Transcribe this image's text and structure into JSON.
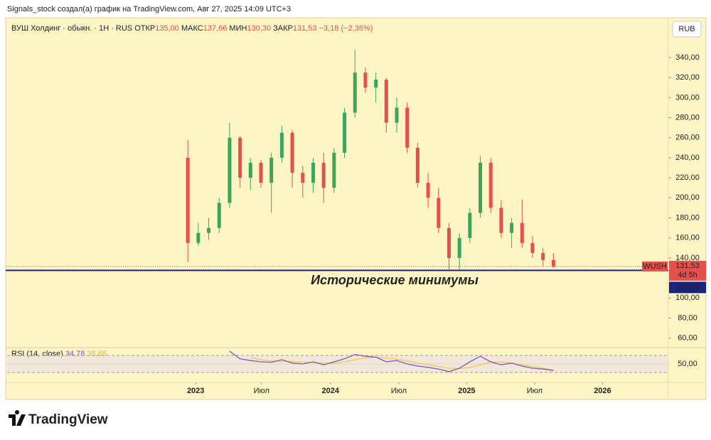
{
  "header": {
    "caption": "Signals_stock создал(а) график на TradingView.com, Авг 27, 2025 14:09 UTC+3",
    "brand": "TradingView",
    "currency": "RUB"
  },
  "chart_data": [
    {
      "type": "candlestick",
      "legend": {
        "symbol": "ВУШ Холдинг · обыкн. · 1Н · RUS",
        "open_label": "ОТКР",
        "open": "135,00",
        "high_label": "МАКС",
        "high": "137,66",
        "low_label": "МИН",
        "low": "130,30",
        "close_label": "ЗАКР",
        "close": "131,53",
        "change": "−3,18 (−2,36%)"
      },
      "x": [
        0,
        1,
        2,
        3,
        4,
        5,
        6,
        7,
        8,
        9,
        10,
        11,
        12,
        13,
        14,
        15,
        16,
        17,
        18,
        19,
        20,
        21,
        22,
        23,
        24,
        25,
        26,
        27,
        28,
        29,
        30,
        31,
        32,
        33,
        34,
        35
      ],
      "open": [
        240,
        155,
        165,
        170,
        195,
        260,
        220,
        235,
        215,
        240,
        265,
        225,
        215,
        235,
        210,
        245,
        285,
        325,
        310,
        318,
        275,
        290,
        250,
        215,
        200,
        170,
        140,
        160,
        185,
        235,
        190,
        165,
        175,
        155,
        145,
        138
      ],
      "high": [
        258,
        175,
        180,
        200,
        275,
        262,
        240,
        238,
        245,
        272,
        268,
        232,
        240,
        245,
        250,
        290,
        348,
        330,
        325,
        320,
        300,
        295,
        255,
        225,
        210,
        175,
        165,
        190,
        242,
        240,
        198,
        180,
        198,
        162,
        150,
        145
      ],
      "low": [
        136,
        152,
        158,
        165,
        190,
        210,
        208,
        210,
        185,
        235,
        210,
        200,
        205,
        195,
        205,
        240,
        280,
        305,
        295,
        265,
        265,
        245,
        210,
        190,
        165,
        128,
        128,
        155,
        180,
        185,
        160,
        150,
        150,
        140,
        132,
        130
      ],
      "close": [
        155,
        165,
        170,
        195,
        260,
        220,
        235,
        215,
        240,
        265,
        225,
        215,
        235,
        210,
        245,
        285,
        325,
        310,
        318,
        275,
        290,
        250,
        215,
        200,
        170,
        140,
        160,
        185,
        235,
        190,
        165,
        175,
        155,
        145,
        138,
        131.53
      ],
      "up_color": "#3fa45b",
      "down_color": "#e5504f",
      "xlim": [
        -17.3,
        46
      ],
      "xticks": [
        {
          "value": 0.75,
          "label": "2023"
        },
        {
          "value": 7.05,
          "label": "Июл"
        },
        {
          "value": 13.65,
          "label": "2024"
        },
        {
          "value": 20.2,
          "label": "Июл"
        },
        {
          "value": 26.7,
          "label": "2025"
        },
        {
          "value": 33.2,
          "label": "Июл"
        },
        {
          "value": 39.7,
          "label": "2026"
        }
      ],
      "ylim": [
        51.3,
        365.5
      ],
      "yticks": [
        {
          "value": 60,
          "label": "60,00"
        },
        {
          "value": 80,
          "label": "80,00"
        },
        {
          "value": 100,
          "label": "100,00"
        },
        {
          "value": 140,
          "label": "140,00"
        },
        {
          "value": 160,
          "label": "160,00"
        },
        {
          "value": 180,
          "label": "180,00"
        },
        {
          "value": 200,
          "label": "200,00"
        },
        {
          "value": 220,
          "label": "220,00"
        },
        {
          "value": 240,
          "label": "240,00"
        },
        {
          "value": 260,
          "label": "260,00"
        },
        {
          "value": 280,
          "label": "280,00"
        },
        {
          "value": 300,
          "label": "300,00"
        },
        {
          "value": 320,
          "label": "320,00"
        },
        {
          "value": 340,
          "label": "340,00"
        }
      ],
      "level": {
        "value": 127.62,
        "label": "127,62",
        "color": "#1a237e",
        "annotation": "Исторические минимумы"
      },
      "last": {
        "symbol": "WUSH",
        "label": "131,53",
        "countdown": "4d 5h"
      }
    },
    {
      "type": "line",
      "title": "RSI (14, close)",
      "x": [
        0,
        1,
        2,
        3,
        4,
        5,
        6,
        7,
        8,
        9,
        10,
        11,
        12,
        13,
        14,
        15,
        16,
        17,
        18,
        19,
        20,
        21,
        22,
        23,
        24,
        25,
        26,
        27,
        28,
        29,
        30,
        31,
        32,
        33,
        34,
        35
      ],
      "series": [
        {
          "color": "#7e57c2",
          "last_label": "34,78",
          "values": [
            null,
            null,
            null,
            null,
            80,
            62,
            58,
            55,
            54,
            60,
            52,
            50,
            55,
            48,
            55,
            62,
            72,
            68,
            66,
            55,
            58,
            50,
            45,
            42,
            38,
            32,
            40,
            55,
            68,
            55,
            48,
            52,
            45,
            40,
            38,
            34.78
          ]
        },
        {
          "color": "#f2c94c",
          "last_label": "35,65",
          "values": [
            null,
            null,
            null,
            null,
            null,
            null,
            65,
            60,
            57,
            56,
            56,
            54,
            53,
            52,
            52,
            55,
            60,
            64,
            66,
            64,
            61,
            57,
            52,
            48,
            44,
            40,
            39,
            42,
            48,
            54,
            55,
            52,
            48,
            44,
            40,
            35.65
          ]
        }
      ],
      "ylim": [
        11.7,
        86.7
      ],
      "yticks": [
        {
          "value": 50,
          "label": "50,00"
        }
      ],
      "bands": [
        30,
        70
      ]
    }
  ]
}
